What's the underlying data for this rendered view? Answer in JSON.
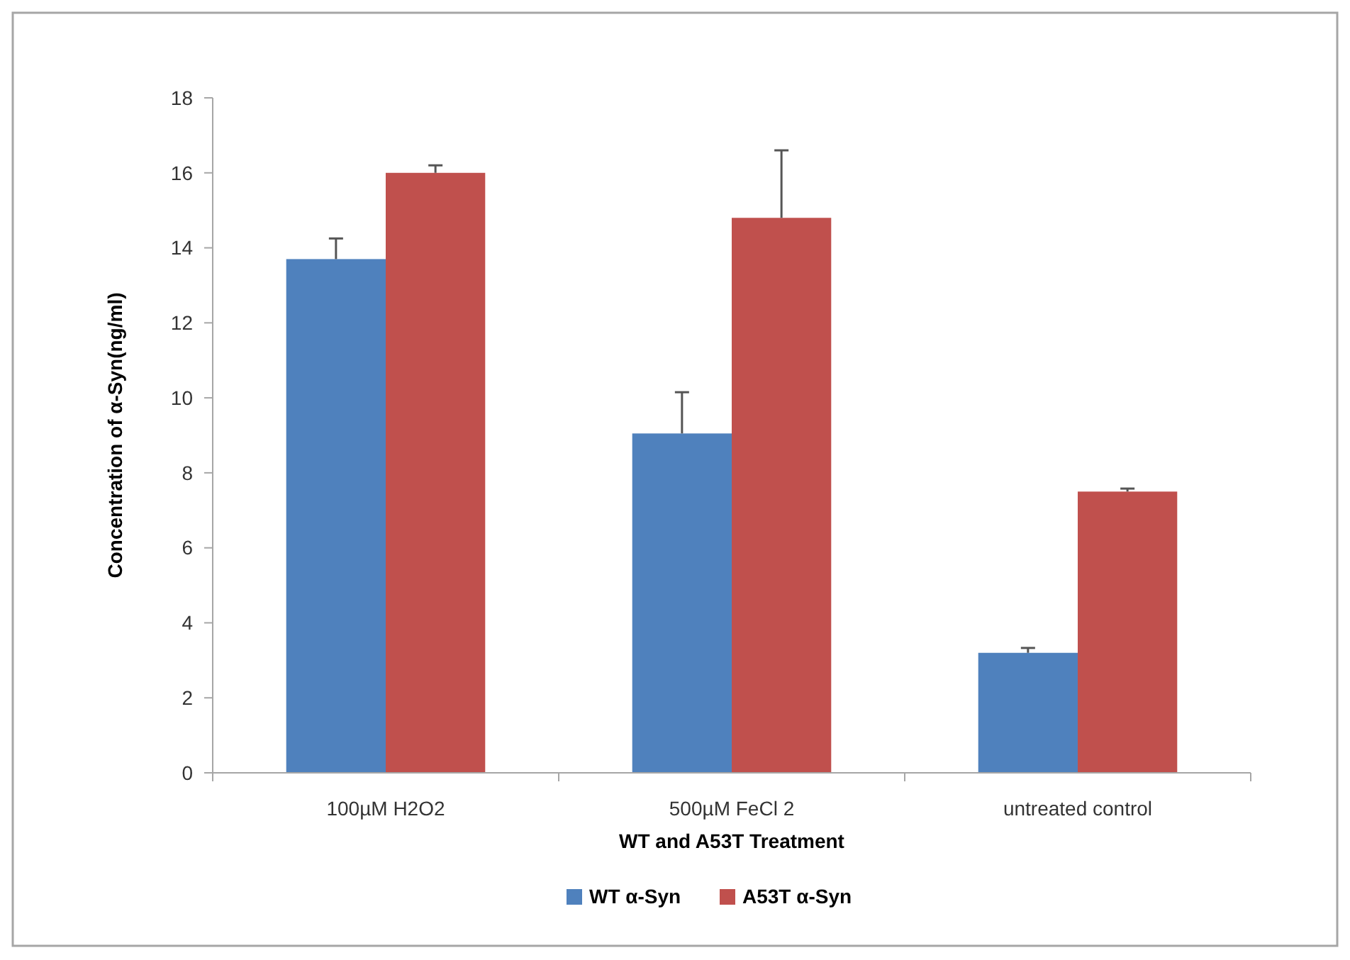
{
  "chart_data": {
    "type": "bar",
    "xlabel": "WT and A53T Treatment",
    "ylabel": "Concentration of  α-Syn(ng/ml)",
    "categories": [
      "100µM H2O2",
      "500µM FeCl 2",
      "untreated control"
    ],
    "series": [
      {
        "name": "WT α-Syn",
        "color": "#4f81bd",
        "values": [
          13.7,
          9.05,
          3.2
        ],
        "errors": [
          0.55,
          1.1,
          0.13
        ]
      },
      {
        "name": "A53T α-Syn",
        "color": "#c0504d",
        "values": [
          16.0,
          14.8,
          7.5
        ],
        "errors": [
          0.2,
          1.8,
          0.08
        ]
      }
    ],
    "ylim": [
      0,
      18
    ],
    "yticks": [
      0,
      2,
      4,
      6,
      8,
      10,
      12,
      14,
      16,
      18
    ],
    "grid": false,
    "legend": "bottom"
  }
}
